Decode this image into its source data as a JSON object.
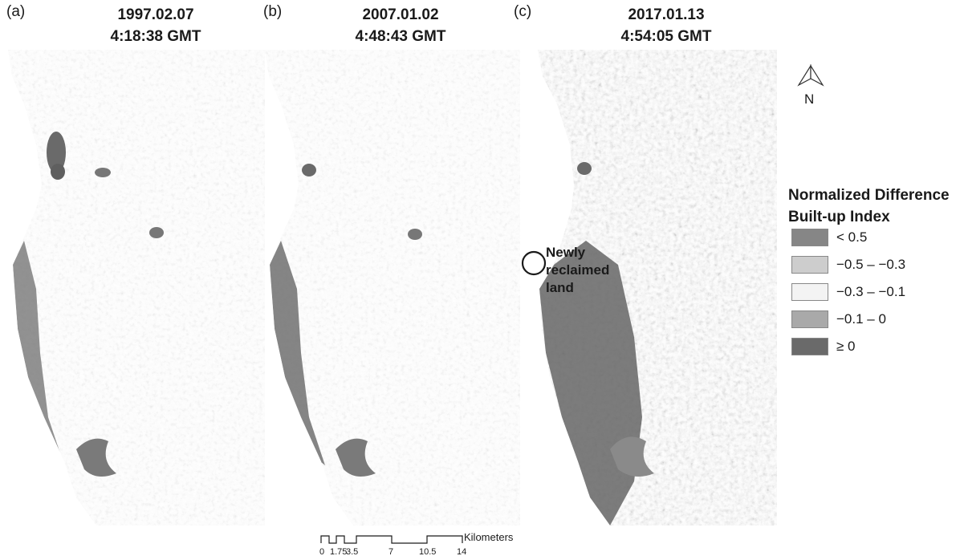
{
  "panels": [
    {
      "letter": "(a)",
      "date": "1997.02.07",
      "time": "4:18:38 GMT"
    },
    {
      "letter": "(b)",
      "date": "2007.01.02",
      "time": "4:48:43 GMT"
    },
    {
      "letter": "(c)",
      "date": "2017.01.13",
      "time": "4:54:05 GMT"
    }
  ],
  "north_label": "N",
  "legend": {
    "title_line1": "Normalized Difference",
    "title_line2": "Built-up Index",
    "items": [
      {
        "label": "< 0.5",
        "color": "#868686"
      },
      {
        "label": "−0.5 – −0.3",
        "color": "#cdcdcd"
      },
      {
        "label": "−0.3 – −0.1",
        "color": "#f3f3f3"
      },
      {
        "label": "−0.1 – 0",
        "color": "#a9a9a9"
      },
      {
        "label": "≥ 0",
        "color": "#6a6a6a"
      }
    ]
  },
  "annotation": {
    "line1": "Newly",
    "line2": "reclaimed",
    "line3": "land"
  },
  "scale_bar": {
    "unit": "Kilometers",
    "ticks": [
      "0",
      "1.75",
      "3.5",
      "7",
      "10.5",
      "14"
    ]
  }
}
